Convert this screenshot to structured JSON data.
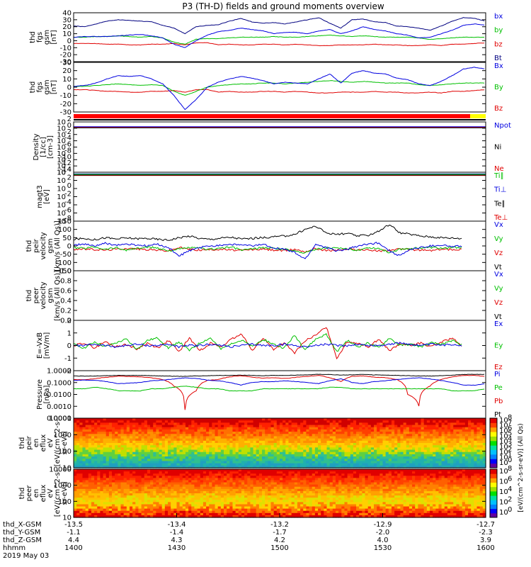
{
  "title": "P3 (TH-D) fields and ground moments overview",
  "chart_data": [
    {
      "id": "fgs",
      "type": "line",
      "ylabel": [
        "thd",
        "fgs",
        "gsm",
        "[nT]"
      ],
      "yticks": [
        "40",
        "30",
        "20",
        "10",
        "0",
        "-10",
        "-20",
        "-30"
      ],
      "ylim": [
        -30,
        40
      ],
      "series": [
        {
          "name": "Bt",
          "color": "#000080",
          "values": [
            21,
            20,
            24,
            28,
            30,
            29,
            28,
            27,
            22,
            18,
            10,
            20,
            22,
            23,
            28,
            32,
            27,
            25,
            26,
            24,
            27,
            30,
            33,
            25,
            18,
            30,
            31,
            27,
            26,
            21,
            20,
            18,
            15,
            21,
            28,
            33,
            32,
            28
          ]
        },
        {
          "name": "bz",
          "color": "#e00000",
          "values": [
            -4,
            -4,
            -4,
            -5,
            -5,
            -6,
            -6,
            -5,
            -5,
            -4,
            -6,
            -3,
            -3,
            -6,
            -5,
            -6,
            -6,
            -5,
            -5,
            -6,
            -5,
            -6,
            -7,
            -7,
            -6,
            -6,
            -6,
            -5,
            -6,
            -6,
            -7,
            -7,
            -6,
            -7,
            -5,
            -5,
            -4,
            -3
          ]
        },
        {
          "name": "by",
          "color": "#00c000",
          "values": [
            5,
            5,
            6,
            6,
            7,
            6,
            5,
            6,
            4,
            -2,
            -5,
            2,
            3,
            3,
            4,
            5,
            5,
            5,
            6,
            5,
            5,
            6,
            7,
            8,
            7,
            6,
            7,
            6,
            5,
            5,
            5,
            4,
            2,
            3,
            4,
            5,
            5,
            5
          ]
        },
        {
          "name": "bx",
          "color": "#0000e0",
          "values": [
            5,
            6,
            6,
            6,
            7,
            8,
            9,
            7,
            4,
            -5,
            -10,
            0,
            8,
            13,
            15,
            18,
            16,
            14,
            10,
            12,
            12,
            10,
            14,
            16,
            10,
            14,
            20,
            16,
            14,
            10,
            8,
            4,
            5,
            10,
            15,
            22,
            24,
            22
          ]
        }
      ]
    },
    {
      "id": "gsm",
      "type": "line",
      "ylabel": [
        "thd",
        "fgs",
        "gsm",
        "[nT]"
      ],
      "yticks": [
        "30",
        "20",
        "10",
        "0",
        "-10",
        "-20",
        "-30"
      ],
      "ylim": [
        -30,
        30
      ],
      "series": [
        {
          "name": "Bz",
          "color": "#e00000",
          "values": [
            -3,
            -3,
            -4,
            -5,
            -5,
            -6,
            -6,
            -5,
            -5,
            -4,
            -6,
            -3,
            -3,
            -6,
            -5,
            -6,
            -6,
            -5,
            -5,
            -6,
            -5,
            -6,
            -7,
            -7,
            -6,
            -6,
            -6,
            -5,
            -6,
            -6,
            -7,
            -7,
            -6,
            -7,
            -5,
            -5,
            -4,
            -3
          ]
        },
        {
          "name": "By",
          "color": "#00c000",
          "values": [
            1,
            1,
            2,
            3,
            4,
            3,
            2,
            3,
            2,
            -5,
            -10,
            -5,
            0,
            2,
            3,
            4,
            4,
            5,
            5,
            4,
            5,
            6,
            7,
            8,
            7,
            6,
            7,
            6,
            5,
            5,
            5,
            3,
            2,
            3,
            4,
            5,
            5,
            5
          ]
        },
        {
          "name": "Bx",
          "color": "#0000e0",
          "values": [
            1,
            2,
            5,
            10,
            14,
            13,
            14,
            10,
            4,
            -10,
            -27,
            -15,
            0,
            6,
            10,
            13,
            11,
            8,
            4,
            6,
            5,
            4,
            10,
            16,
            5,
            17,
            20,
            17,
            16,
            11,
            9,
            4,
            2,
            7,
            14,
            22,
            24,
            22
          ]
        }
      ]
    },
    {
      "id": "density",
      "type": "line",
      "ylabel": [
        "Density",
        "[1/cc]",
        "[cm-3]"
      ],
      "yticks": [
        "10",
        "10",
        "10",
        "10",
        "10",
        "10",
        "10",
        "10",
        "10"
      ],
      "yexp": [
        "2",
        "0",
        "-2",
        "-4",
        "-6",
        "-8",
        "-10",
        "-12",
        "-14"
      ],
      "ylim_log": [
        -14,
        2
      ],
      "series": [
        {
          "name": "Ne",
          "color": "#e00000",
          "value_log": 0.3
        },
        {
          "name": "Ni",
          "color": "#000000",
          "value_log": 0.1
        },
        {
          "name": "Npot",
          "color": "#0000e0",
          "value_log": 0.5
        }
      ]
    },
    {
      "id": "temperature",
      "type": "line",
      "ylabel": [
        "magt3",
        "[eV]"
      ],
      "yticks": [
        "10",
        "10",
        "10",
        "10",
        "10",
        "10",
        "10"
      ],
      "yexp": [
        "4",
        "2",
        "0",
        "-2",
        "-4",
        "-6",
        "-8"
      ],
      "ylim_log": [
        -8,
        4
      ],
      "series": [
        {
          "name": "Te⊥",
          "color": "#e00000",
          "value_log": 3.2
        },
        {
          "name": "Te∥",
          "color": "#000000",
          "value_log": 3.3
        },
        {
          "name": "Ti⊥",
          "color": "#0000e0",
          "value_log": 3.6
        },
        {
          "name": "Ti∥",
          "color": "#00c000",
          "value_log": 3.5
        }
      ]
    },
    {
      "id": "peir_velocity",
      "type": "line",
      "ylabel": [
        "thd",
        "peir",
        "velocity",
        "gsm",
        "[km/s (All Qs)]"
      ],
      "yticks": [
        "150",
        "100",
        "50",
        "0",
        "-50",
        "-100",
        "-150"
      ],
      "ylim": [
        -150,
        150
      ],
      "series": [
        {
          "name": "Vt",
          "color": "#000000",
          "values": [
            40,
            45,
            38,
            50,
            42,
            48,
            44,
            46,
            40,
            35,
            50,
            60,
            45,
            40,
            48,
            52,
            42,
            46,
            50,
            55,
            60,
            70,
            100,
            120,
            80,
            70,
            75,
            60,
            65,
            90,
            130,
            80,
            70,
            60,
            55,
            50,
            48,
            45
          ]
        },
        {
          "name": "Vz",
          "color": "#e00000",
          "values": [
            -20,
            -18,
            -22,
            -25,
            -20,
            -15,
            -18,
            -22,
            -25,
            -30,
            -10,
            -20,
            -25,
            -22,
            -20,
            -25,
            -28,
            -22,
            -20,
            -25,
            -30,
            -20,
            -35,
            -15,
            -28,
            -25,
            -20,
            -22,
            -25,
            -30,
            -25,
            -20,
            -22,
            -25,
            -28,
            -20,
            -22,
            -20
          ]
        },
        {
          "name": "Vy",
          "color": "#00c000",
          "values": [
            -10,
            -15,
            -5,
            -20,
            -10,
            -25,
            -15,
            -8,
            -12,
            -30,
            -20,
            -10,
            -15,
            -20,
            -12,
            -8,
            -25,
            -18,
            -10,
            -15,
            -20,
            -30,
            -40,
            -20,
            -10,
            -15,
            -20,
            -25,
            -10,
            -15,
            -40,
            -20,
            -15,
            -12,
            -10,
            -15,
            -10,
            -8
          ]
        },
        {
          "name": "Vx",
          "color": "#0000e0",
          "values": [
            5,
            10,
            0,
            15,
            5,
            10,
            5,
            0,
            10,
            -10,
            -60,
            -30,
            -10,
            0,
            5,
            10,
            5,
            0,
            10,
            -10,
            -20,
            -40,
            -80,
            10,
            -10,
            -30,
            -20,
            0,
            10,
            20,
            -30,
            -60,
            -20,
            -10,
            0,
            5,
            -5,
            0
          ]
        }
      ]
    },
    {
      "id": "peer_velocity",
      "type": "line",
      "ylabel": [
        "thd",
        "peer",
        "velocity",
        "gsm",
        "[km/s (All Qs)]"
      ],
      "yticks": [
        "1.0",
        "0.8",
        "0.6",
        "0.4",
        "0.2",
        "0.0"
      ],
      "ylim": [
        0,
        1
      ],
      "series": [
        {
          "name": "Vt",
          "color": "#000000"
        },
        {
          "name": "Vz",
          "color": "#e00000"
        },
        {
          "name": "Vy",
          "color": "#00c000"
        },
        {
          "name": "Vx",
          "color": "#0000e0"
        }
      ]
    },
    {
      "id": "efield",
      "type": "line",
      "ylabel": [
        "E=-VxB",
        "[mV/m]"
      ],
      "yticks": [
        "2",
        "1",
        "0",
        "-1",
        "-2"
      ],
      "ylim": [
        -2,
        2
      ],
      "series": [
        {
          "name": "Ez",
          "color": "#e00000",
          "values": [
            0,
            0.2,
            -0.2,
            0.3,
            -0.1,
            0.1,
            -0.3,
            0.2,
            -0.2,
            0.4,
            -0.5,
            0.6,
            -0.4,
            0.2,
            -0.1,
            0.5,
            0.9,
            -0.4,
            0.6,
            -0.3,
            0.2,
            -0.6,
            0.4,
            0.8,
            1.5,
            -1.0,
            0.3,
            0.2,
            -0.1,
            0.5,
            -0.4,
            0.1,
            0,
            0.2,
            -0.1,
            0.3,
            0.6,
            -0.2
          ]
        },
        {
          "name": "Ey",
          "color": "#00c000",
          "values": [
            0.1,
            -0.2,
            0.3,
            -0.1,
            0.2,
            0.5,
            -0.3,
            0.4,
            0.6,
            -0.2,
            0.3,
            -0.4,
            0.2,
            0.6,
            -0.3,
            0.2,
            0.4,
            -0.1,
            0.5,
            0.1,
            -0.2,
            0.8,
            -0.3,
            0.5,
            0.9,
            -0.5,
            0.4,
            -0.1,
            0.2,
            -0.2,
            0.6,
            0,
            0.1,
            -0.1,
            0.2,
            0.1,
            0.4,
            0
          ]
        },
        {
          "name": "Ex",
          "color": "#0000e0",
          "values": [
            0,
            0,
            0.1,
            0,
            -0.1,
            0,
            0.1,
            0,
            0,
            0.1,
            -0.1,
            0,
            0,
            0.1,
            0,
            -0.1,
            0,
            0.1,
            0,
            0,
            0.1,
            0,
            -0.1,
            0,
            0.1,
            0,
            0,
            0.1,
            0,
            0,
            0.1,
            0.2,
            0.1,
            0,
            0.1,
            0,
            0.1,
            0
          ]
        }
      ]
    },
    {
      "id": "pressure",
      "type": "line",
      "ylabel": [
        "Pressure",
        "[nPa]"
      ],
      "yticks": [
        "1.0000",
        "0.1000",
        "0.0100",
        "0.0010",
        "0.0001"
      ],
      "ylim_log": [
        -4,
        0
      ],
      "series": [
        {
          "name": "Pt",
          "color": "#000000",
          "values": [
            0.35,
            0.35,
            0.36,
            0.38,
            0.4,
            0.4,
            0.4,
            0.38,
            0.36,
            0.34,
            0.33,
            0.36,
            0.38,
            0.4,
            0.4,
            0.42,
            0.4,
            0.38,
            0.4,
            0.4,
            0.42,
            0.45,
            0.5,
            0.48,
            0.42,
            0.45,
            0.48,
            0.44,
            0.42,
            0.4,
            0.38,
            0.36,
            0.35,
            0.38,
            0.42,
            0.48,
            0.5,
            0.48
          ]
        },
        {
          "name": "Pb",
          "color": "#e00000",
          "values": [
            0.18,
            0.17,
            0.22,
            0.28,
            0.34,
            0.32,
            0.3,
            0.25,
            0.18,
            0.05,
            0.0005,
            0.02,
            0.15,
            0.18,
            0.3,
            0.38,
            0.28,
            0.24,
            0.25,
            0.22,
            0.28,
            0.33,
            0.4,
            0.25,
            0.12,
            0.33,
            0.36,
            0.28,
            0.26,
            0.18,
            0.01,
            0.001,
            0.05,
            0.18,
            0.3,
            0.4,
            0.4,
            0.32
          ]
        },
        {
          "name": "Pe",
          "color": "#00c000",
          "values": [
            0.03,
            0.03,
            0.04,
            0.03,
            0.02,
            0.02,
            0.02,
            0.03,
            0.03,
            0.04,
            0.05,
            0.04,
            0.03,
            0.03,
            0.02,
            0.02,
            0.02,
            0.03,
            0.03,
            0.03,
            0.03,
            0.03,
            0.03,
            0.04,
            0.04,
            0.03,
            0.03,
            0.03,
            0.03,
            0.03,
            0.03,
            0.03,
            0.03,
            0.03,
            0.02,
            0.02,
            0.02,
            0.03
          ]
        },
        {
          "name": "Pi",
          "color": "#0000e0",
          "values": [
            0.15,
            0.16,
            0.15,
            0.12,
            0.08,
            0.09,
            0.1,
            0.14,
            0.16,
            0.2,
            0.25,
            0.22,
            0.16,
            0.14,
            0.1,
            0.06,
            0.1,
            0.12,
            0.12,
            0.14,
            0.12,
            0.1,
            0.08,
            0.14,
            0.2,
            0.1,
            0.08,
            0.12,
            0.14,
            0.18,
            0.22,
            0.25,
            0.2,
            0.15,
            0.1,
            0.06,
            0.06,
            0.08
          ]
        }
      ]
    },
    {
      "id": "peir_eflux",
      "type": "heatmap",
      "ylabel": [
        "thd",
        "peir",
        "en",
        "eflux",
        "eV",
        "[eV/(cm^2-s-",
        "sr-eV)]"
      ],
      "yticks": [
        "10000",
        "1000",
        "100",
        "10"
      ],
      "colorbar_label": "[eV/(cm^2-s-sr-eV)] (All Qs)",
      "colorbar_exp": [
        "8",
        "7",
        "6",
        "5",
        "4",
        "3",
        "2",
        "1",
        "0"
      ]
    },
    {
      "id": "peer_eflux",
      "type": "heatmap",
      "ylabel": [
        "thd",
        "peer",
        "en",
        "eflux",
        "eV",
        "[eV/(cm^2-s-",
        "sr-eV)]"
      ],
      "yticks": [
        "10000",
        "1000",
        "100",
        "10"
      ],
      "colorbar_label": "[eV/(cm^2-s-sr-eV)]",
      "colorbar_exp": [
        "8",
        "6",
        "4",
        "2",
        "0"
      ]
    }
  ],
  "xaxis": {
    "labels": [
      "thd_X-GSM",
      "thd_Y-GSM",
      "thd_Z-GSM",
      "hhmm"
    ],
    "date": "2019 May 03",
    "ticks": [
      [
        "-13.5",
        "-1.1",
        "4.4",
        "1400"
      ],
      [
        "-13.4",
        "-1.4",
        "4.3",
        "1430"
      ],
      [
        "-13.2",
        "-1.7",
        "4.2",
        "1500"
      ],
      [
        "-12.9",
        "-2.0",
        "4.0",
        "1530"
      ],
      [
        "-12.7",
        "-2.3",
        "3.9",
        "1600"
      ]
    ]
  }
}
